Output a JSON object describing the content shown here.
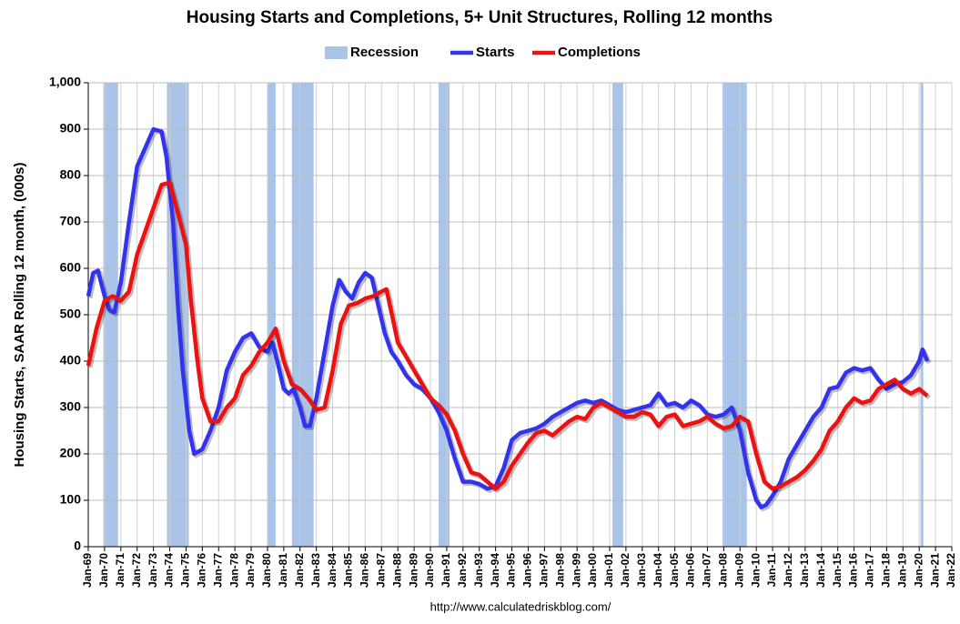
{
  "chart_data": {
    "type": "line",
    "title": "Housing Starts and Completions, 5+ Unit Structures, Rolling 12 months",
    "y_label": "Housing Starts, SAAR Rolling 12 month, (000s)",
    "source": "http://www.calculatedriskblog.com/",
    "recession": {
      "name": "Recession",
      "color": "#a9c4e8",
      "spans": [
        [
          1969.92,
          1970.83
        ],
        [
          1973.83,
          1975.17
        ],
        [
          1980.0,
          1980.5
        ],
        [
          1981.5,
          1982.83
        ],
        [
          1990.5,
          1991.17
        ],
        [
          2001.17,
          2001.83
        ],
        [
          2007.92,
          2009.42
        ],
        [
          2020.08,
          2020.25
        ]
      ]
    },
    "xlim": [
      1969,
      2022
    ],
    "xticks": [
      {
        "value": 1969,
        "label": "Jan-69"
      },
      {
        "value": 1970,
        "label": "Jan-70"
      },
      {
        "value": 1971,
        "label": "Jan-71"
      },
      {
        "value": 1972,
        "label": "Jan-72"
      },
      {
        "value": 1973,
        "label": "Jan-73"
      },
      {
        "value": 1974,
        "label": "Jan-74"
      },
      {
        "value": 1975,
        "label": "Jan-75"
      },
      {
        "value": 1976,
        "label": "Jan-76"
      },
      {
        "value": 1977,
        "label": "Jan-77"
      },
      {
        "value": 1978,
        "label": "Jan-78"
      },
      {
        "value": 1979,
        "label": "Jan-79"
      },
      {
        "value": 1980,
        "label": "Jan-80"
      },
      {
        "value": 1981,
        "label": "Jan-81"
      },
      {
        "value": 1982,
        "label": "Jan-82"
      },
      {
        "value": 1983,
        "label": "Jan-83"
      },
      {
        "value": 1984,
        "label": "Jan-84"
      },
      {
        "value": 1985,
        "label": "Jan-85"
      },
      {
        "value": 1986,
        "label": "Jan-86"
      },
      {
        "value": 1987,
        "label": "Jan-87"
      },
      {
        "value": 1988,
        "label": "Jan-88"
      },
      {
        "value": 1989,
        "label": "Jan-89"
      },
      {
        "value": 1990,
        "label": "Jan-90"
      },
      {
        "value": 1991,
        "label": "Jan-91"
      },
      {
        "value": 1992,
        "label": "Jan-92"
      },
      {
        "value": 1993,
        "label": "Jan-93"
      },
      {
        "value": 1994,
        "label": "Jan-94"
      },
      {
        "value": 1995,
        "label": "Jan-95"
      },
      {
        "value": 1996,
        "label": "Jan-96"
      },
      {
        "value": 1997,
        "label": "Jan-97"
      },
      {
        "value": 1998,
        "label": "Jan-98"
      },
      {
        "value": 1999,
        "label": "Jan-99"
      },
      {
        "value": 2000,
        "label": "Jan-00"
      },
      {
        "value": 2001,
        "label": "Jan-01"
      },
      {
        "value": 2002,
        "label": "Jan-02"
      },
      {
        "value": 2003,
        "label": "Jan-03"
      },
      {
        "value": 2004,
        "label": "Jan-04"
      },
      {
        "value": 2005,
        "label": "Jan-05"
      },
      {
        "value": 2006,
        "label": "Jan-06"
      },
      {
        "value": 2007,
        "label": "Jan-07"
      },
      {
        "value": 2008,
        "label": "Jan-08"
      },
      {
        "value": 2009,
        "label": "Jan-09"
      },
      {
        "value": 2010,
        "label": "Jan-10"
      },
      {
        "value": 2011,
        "label": "Jan-11"
      },
      {
        "value": 2012,
        "label": "Jan-12"
      },
      {
        "value": 2013,
        "label": "Jan-13"
      },
      {
        "value": 2014,
        "label": "Jan-14"
      },
      {
        "value": 2015,
        "label": "Jan-15"
      },
      {
        "value": 2016,
        "label": "Jan-16"
      },
      {
        "value": 2017,
        "label": "Jan-17"
      },
      {
        "value": 2018,
        "label": "Jan-18"
      },
      {
        "value": 2019,
        "label": "Jan-19"
      },
      {
        "value": 2020,
        "label": "Jan-20"
      },
      {
        "value": 2021,
        "label": "Jan-21"
      },
      {
        "value": 2022,
        "label": "Jan-22"
      }
    ],
    "ylim": [
      0,
      1000
    ],
    "yticks": [
      0,
      100,
      200,
      300,
      400,
      500,
      600,
      700,
      800,
      900,
      {
        "value": 1000,
        "label": "1,000"
      }
    ],
    "grid": true,
    "series": [
      {
        "name": "Starts",
        "color": "#3333ee",
        "x": [
          1969.0,
          1969.3,
          1969.6,
          1970.0,
          1970.3,
          1970.6,
          1971.0,
          1971.5,
          1972.0,
          1972.5,
          1973.0,
          1973.5,
          1973.8,
          1974.2,
          1974.5,
          1974.8,
          1975.2,
          1975.5,
          1976.0,
          1976.5,
          1977.0,
          1977.5,
          1978.0,
          1978.5,
          1979.0,
          1979.5,
          1980.0,
          1980.3,
          1980.6,
          1981.0,
          1981.3,
          1981.6,
          1982.0,
          1982.3,
          1982.6,
          1983.0,
          1983.5,
          1984.0,
          1984.4,
          1984.8,
          1985.2,
          1985.6,
          1986.0,
          1986.4,
          1986.8,
          1987.2,
          1987.6,
          1988.0,
          1988.5,
          1989.0,
          1989.5,
          1990.0,
          1990.5,
          1991.0,
          1991.5,
          1992.0,
          1992.5,
          1993.0,
          1993.5,
          1994.0,
          1994.5,
          1995.0,
          1995.5,
          1996.0,
          1996.5,
          1997.0,
          1997.5,
          1998.0,
          1998.5,
          1999.0,
          1999.5,
          2000.0,
          2000.5,
          2001.0,
          2001.5,
          2002.0,
          2002.5,
          2003.0,
          2003.5,
          2004.0,
          2004.5,
          2005.0,
          2005.5,
          2006.0,
          2006.5,
          2007.0,
          2007.5,
          2008.0,
          2008.5,
          2009.0,
          2009.5,
          2010.0,
          2010.3,
          2010.6,
          2011.0,
          2011.5,
          2012.0,
          2012.5,
          2013.0,
          2013.5,
          2014.0,
          2014.5,
          2015.0,
          2015.5,
          2016.0,
          2016.5,
          2017.0,
          2017.5,
          2018.0,
          2018.5,
          2019.0,
          2019.5,
          2020.0,
          2020.2,
          2020.5
        ],
        "values": [
          540,
          590,
          595,
          540,
          510,
          505,
          570,
          700,
          820,
          860,
          900,
          895,
          840,
          700,
          520,
          380,
          250,
          200,
          210,
          250,
          300,
          380,
          420,
          450,
          460,
          430,
          420,
          440,
          400,
          340,
          330,
          340,
          300,
          260,
          260,
          320,
          420,
          520,
          575,
          550,
          535,
          570,
          590,
          580,
          520,
          460,
          420,
          400,
          370,
          350,
          340,
          320,
          290,
          250,
          190,
          140,
          140,
          135,
          125,
          130,
          170,
          230,
          245,
          250,
          255,
          265,
          280,
          290,
          300,
          310,
          315,
          310,
          315,
          305,
          295,
          290,
          295,
          300,
          305,
          330,
          305,
          310,
          300,
          315,
          305,
          285,
          280,
          285,
          300,
          250,
          160,
          100,
          85,
          90,
          110,
          140,
          190,
          220,
          250,
          280,
          300,
          340,
          345,
          375,
          385,
          380,
          385,
          360,
          340,
          350,
          355,
          370,
          400,
          425,
          400
        ]
      },
      {
        "name": "Completions",
        "color": "#ee1111",
        "x": [
          1969.0,
          1969.5,
          1970.0,
          1970.5,
          1971.0,
          1971.5,
          1972.0,
          1972.5,
          1973.0,
          1973.5,
          1974.0,
          1974.5,
          1975.0,
          1975.3,
          1975.7,
          1976.0,
          1976.5,
          1977.0,
          1977.5,
          1978.0,
          1978.5,
          1979.0,
          1979.5,
          1980.0,
          1980.5,
          1981.0,
          1981.5,
          1982.0,
          1982.5,
          1983.0,
          1983.5,
          1984.0,
          1984.5,
          1985.0,
          1985.5,
          1986.0,
          1986.5,
          1987.0,
          1987.3,
          1987.7,
          1988.0,
          1988.5,
          1989.0,
          1989.5,
          1990.0,
          1990.5,
          1991.0,
          1991.5,
          1992.0,
          1992.5,
          1993.0,
          1993.5,
          1994.0,
          1994.5,
          1995.0,
          1995.5,
          1996.0,
          1996.5,
          1997.0,
          1997.5,
          1998.0,
          1998.5,
          1999.0,
          1999.5,
          2000.0,
          2000.5,
          2001.0,
          2001.5,
          2002.0,
          2002.5,
          2003.0,
          2003.5,
          2004.0,
          2004.5,
          2005.0,
          2005.5,
          2006.0,
          2006.5,
          2007.0,
          2007.5,
          2008.0,
          2008.5,
          2009.0,
          2009.5,
          2010.0,
          2010.5,
          2011.0,
          2011.5,
          2012.0,
          2012.5,
          2013.0,
          2013.5,
          2014.0,
          2014.5,
          2015.0,
          2015.5,
          2016.0,
          2016.5,
          2017.0,
          2017.5,
          2018.0,
          2018.5,
          2019.0,
          2019.5,
          2020.0,
          2020.5
        ],
        "values": [
          390,
          470,
          530,
          540,
          530,
          550,
          630,
          680,
          730,
          780,
          785,
          720,
          650,
          530,
          400,
          320,
          270,
          270,
          300,
          320,
          370,
          390,
          420,
          440,
          470,
          400,
          350,
          340,
          320,
          295,
          300,
          380,
          480,
          520,
          525,
          535,
          540,
          550,
          555,
          490,
          440,
          410,
          380,
          350,
          320,
          305,
          285,
          250,
          200,
          160,
          155,
          140,
          125,
          140,
          175,
          200,
          225,
          245,
          250,
          240,
          255,
          270,
          280,
          275,
          300,
          310,
          300,
          290,
          280,
          280,
          290,
          285,
          260,
          280,
          285,
          260,
          265,
          270,
          280,
          265,
          255,
          260,
          280,
          270,
          200,
          140,
          125,
          130,
          140,
          150,
          165,
          185,
          210,
          250,
          270,
          300,
          320,
          310,
          315,
          340,
          350,
          360,
          340,
          330,
          340,
          325
        ]
      }
    ]
  }
}
